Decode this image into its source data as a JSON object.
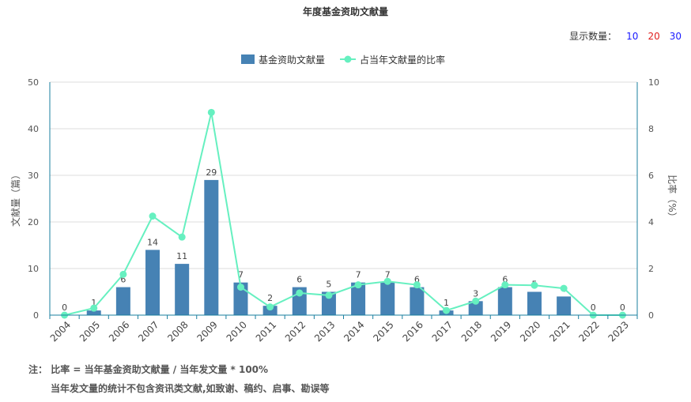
{
  "title": "年度基金资助文献量",
  "count_selector": {
    "label": "显示数量：",
    "options": [
      "10",
      "20",
      "30"
    ]
  },
  "notes": {
    "prefix": "注：",
    "line1": "比率 = 当年基金资助文献量 / 当年发文量 * 100%",
    "line2": "当年发文量的统计不包含资讯类文献,如致谢、稿约、启事、勘误等"
  },
  "colors": {
    "bar": "#4682b4",
    "line": "#66f0c0",
    "axis_right": "#1a7f9f"
  },
  "chart_data": {
    "type": "bar+line",
    "categories": [
      "2004",
      "2005",
      "2006",
      "2007",
      "2008",
      "2009",
      "2010",
      "2011",
      "2012",
      "2013",
      "2014",
      "2015",
      "2016",
      "2017",
      "2018",
      "2019",
      "2020",
      "2021",
      "2022",
      "2023"
    ],
    "series": [
      {
        "name": "基金资助文献量",
        "type": "bar",
        "axis": "left",
        "values": [
          0,
          1,
          6,
          14,
          11,
          29,
          7,
          2,
          6,
          5,
          7,
          7,
          6,
          1,
          3,
          6,
          5,
          4,
          0,
          0
        ]
      },
      {
        "name": "占当年文献量的比率",
        "type": "line",
        "axis": "right",
        "values": [
          0,
          0.3,
          1.75,
          4.25,
          3.35,
          8.7,
          1.2,
          0.35,
          0.95,
          0.85,
          1.3,
          1.45,
          1.3,
          0.2,
          0.6,
          1.3,
          1.28,
          1.15,
          0,
          0
        ]
      }
    ],
    "ylabel_left": "文献量（篇）",
    "ylabel_right": "比率（%）",
    "ylim_left": [
      0,
      50
    ],
    "ylim_right": [
      0,
      10
    ],
    "yticks_left": [
      0,
      10,
      20,
      30,
      40,
      50
    ],
    "yticks_right": [
      0,
      2,
      4,
      6,
      8,
      10
    ],
    "grid": true,
    "legend": "top-center"
  }
}
